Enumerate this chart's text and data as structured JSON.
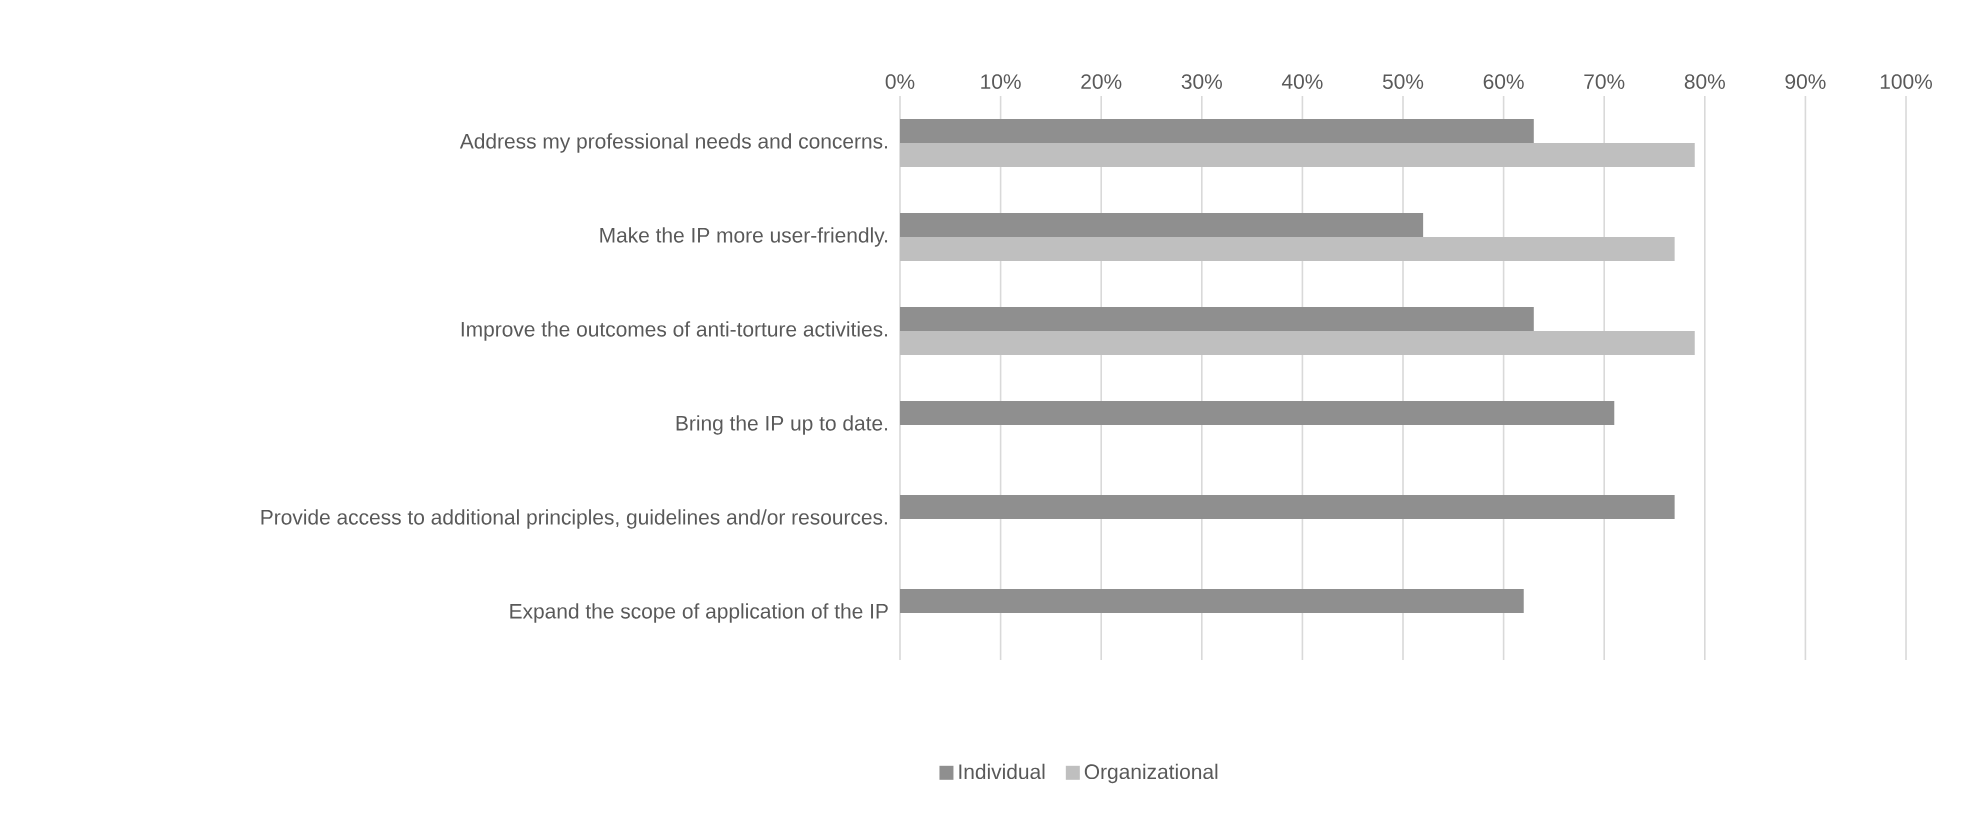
{
  "chart_data": {
    "type": "bar",
    "orientation": "horizontal",
    "categories": [
      "Address my professional needs and concerns.",
      "Make the IP more user-friendly.",
      "Improve the outcomes of anti-torture activities.",
      "Bring the IP up to date.",
      "Provide access to additional principles, guidelines and/or resources.",
      "Expand the scope of application of the IP"
    ],
    "series": [
      {
        "name": "Individual",
        "color": "#8f8f8f",
        "values": [
          63,
          52,
          63,
          71,
          77,
          62
        ]
      },
      {
        "name": "Organizational",
        "color": "#bfbfbf",
        "values": [
          79,
          77,
          79,
          null,
          null,
          null
        ]
      }
    ],
    "xlim": [
      0,
      100
    ],
    "xticks": [
      {
        "value": 0,
        "label": "0%"
      },
      {
        "value": 10,
        "label": "10%"
      },
      {
        "value": 20,
        "label": "20%"
      },
      {
        "value": 30,
        "label": "30%"
      },
      {
        "value": 40,
        "label": "40%"
      },
      {
        "value": 50,
        "label": "50%"
      },
      {
        "value": 60,
        "label": "60%"
      },
      {
        "value": 70,
        "label": "70%"
      },
      {
        "value": 80,
        "label": "80%"
      },
      {
        "value": 90,
        "label": "90%"
      },
      {
        "value": 100,
        "label": "100%"
      }
    ],
    "grid": "x",
    "legend": "bottom"
  }
}
